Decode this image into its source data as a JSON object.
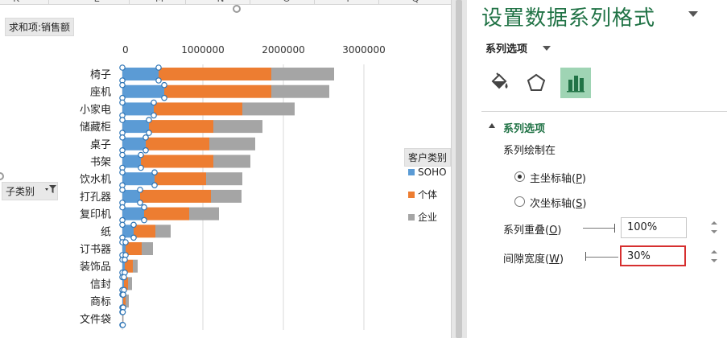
{
  "sheet": {
    "columns": [
      "K",
      "L",
      "M",
      "N",
      "O",
      "P",
      "Q"
    ],
    "value_field_button": "求和项:销售额",
    "row_field_button": "子类别",
    "legend_title_button": "客户类别"
  },
  "chart_data": {
    "type": "bar",
    "orientation": "horizontal",
    "stacked": true,
    "categories": [
      "椅子",
      "座机",
      "小家电",
      "储藏柜",
      "桌子",
      "书架",
      "饮水机",
      "打孔器",
      "复印机",
      "纸",
      "订书器",
      "装饰品",
      "信封",
      "商标",
      "文件袋"
    ],
    "series": [
      {
        "name": "SOHO",
        "color": "#5b9bd5",
        "values": [
          450000,
          520000,
          390000,
          330000,
          290000,
          230000,
          400000,
          220000,
          270000,
          140000,
          40000,
          30000,
          20000,
          10000,
          5000
        ]
      },
      {
        "name": "个体",
        "color": "#ed7d31",
        "values": [
          1400000,
          1330000,
          1100000,
          800000,
          790000,
          900000,
          640000,
          880000,
          560000,
          270000,
          200000,
          100000,
          50000,
          30000,
          3000
        ]
      },
      {
        "name": "企业",
        "color": "#a5a5a5",
        "values": [
          780000,
          720000,
          650000,
          610000,
          570000,
          460000,
          450000,
          380000,
          370000,
          190000,
          140000,
          60000,
          50000,
          40000,
          2000
        ]
      }
    ],
    "x_ticks": [
      "0",
      "1000000",
      "2000000",
      "3000000"
    ],
    "xlim": [
      0,
      3000000
    ],
    "legend_position": "right",
    "selected_series": "SOHO"
  },
  "pane": {
    "title": "设置数据系列格式",
    "subtitle": "系列选项",
    "tab_icons": [
      "fill-line-icon",
      "effects-pentagon-icon",
      "series-options-bar-icon"
    ],
    "section": "系列选项",
    "plot_on_label": "系列绘制在",
    "primary_axis_label": "主坐标轴(",
    "primary_axis_key": "P",
    "secondary_axis_label": "次坐标轴(",
    "secondary_axis_key": "S",
    "overlap_label": "系列重叠(",
    "overlap_key": "O",
    "overlap_value": "100%",
    "gap_label": "间隙宽度(",
    "gap_key": "W",
    "gap_value": "30%",
    "close_paren": ")"
  },
  "colors": {
    "accent_green": "#217346",
    "active_tab": "#9fd4b4",
    "focus_red": "#d62f2f"
  }
}
